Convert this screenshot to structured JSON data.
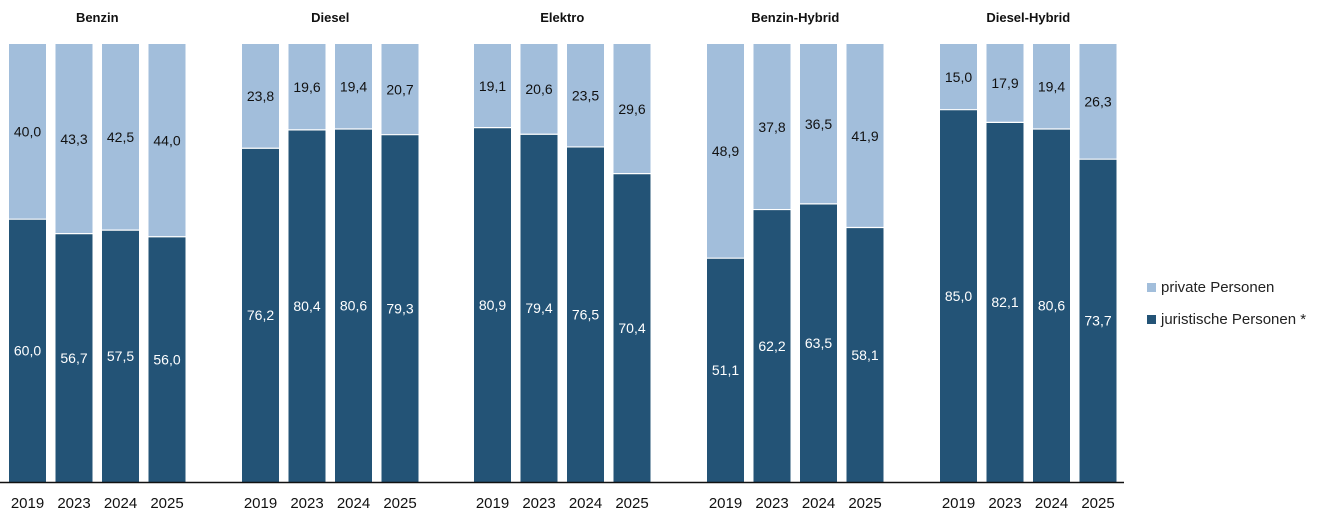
{
  "chart_data": {
    "type": "bar",
    "stacked": true,
    "percent": true,
    "ylim": [
      0,
      100
    ],
    "grid": false,
    "legend_position": "right",
    "series": [
      {
        "key": "juristisch",
        "name": "juristische Personen *",
        "color": "#235376"
      },
      {
        "key": "privat",
        "name": "private Personen",
        "color": "#a2bedb"
      }
    ],
    "groups": [
      {
        "title": "Benzin",
        "categories": [
          "2019",
          "2023",
          "2024",
          "2025"
        ],
        "values": {
          "juristisch": [
            60.0,
            56.7,
            57.5,
            56.0
          ],
          "privat": [
            40.0,
            43.3,
            42.5,
            44.0
          ]
        },
        "labels": {
          "juristisch": [
            "60,0",
            "56,7",
            "57,5",
            "56,0"
          ],
          "privat": [
            "40,0",
            "43,3",
            "42,5",
            "44,0"
          ]
        }
      },
      {
        "title": "Diesel",
        "categories": [
          "2019",
          "2023",
          "2024",
          "2025"
        ],
        "values": {
          "juristisch": [
            76.2,
            80.4,
            80.6,
            79.3
          ],
          "privat": [
            23.8,
            19.6,
            19.4,
            20.7
          ]
        },
        "labels": {
          "juristisch": [
            "76,2",
            "80,4",
            "80,6",
            "79,3"
          ],
          "privat": [
            "23,8",
            "19,6",
            "19,4",
            "20,7"
          ]
        }
      },
      {
        "title": "Elektro",
        "categories": [
          "2019",
          "2023",
          "2024",
          "2025"
        ],
        "values": {
          "juristisch": [
            80.9,
            79.4,
            76.5,
            70.4
          ],
          "privat": [
            19.1,
            20.6,
            23.5,
            29.6
          ]
        },
        "labels": {
          "juristisch": [
            "80,9",
            "79,4",
            "76,5",
            "70,4"
          ],
          "privat": [
            "19,1",
            "20,6",
            "23,5",
            "29,6"
          ]
        }
      },
      {
        "title": "Benzin-Hybrid",
        "categories": [
          "2019",
          "2023",
          "2024",
          "2025"
        ],
        "values": {
          "juristisch": [
            51.1,
            62.2,
            63.5,
            58.1
          ],
          "privat": [
            48.9,
            37.8,
            36.5,
            41.9
          ]
        },
        "labels": {
          "juristisch": [
            "51,1",
            "62,2",
            "63,5",
            "58,1"
          ],
          "privat": [
            "48,9",
            "37,8",
            "36,5",
            "41,9"
          ]
        }
      },
      {
        "title": "Diesel-Hybrid",
        "categories": [
          "2019",
          "2023",
          "2024",
          "2025"
        ],
        "values": {
          "juristisch": [
            85.0,
            82.1,
            80.6,
            73.7
          ],
          "privat": [
            15.0,
            17.9,
            19.4,
            26.3
          ]
        },
        "labels": {
          "juristisch": [
            "85,0",
            "82,1",
            "80,6",
            "73,7"
          ],
          "privat": [
            "15,0",
            "17,9",
            "19,4",
            "26,3"
          ]
        }
      }
    ]
  },
  "legend": {
    "items": [
      {
        "label": "private Personen",
        "color": "#a2bedb"
      },
      {
        "label": "juristische Personen *",
        "color": "#235376"
      }
    ]
  }
}
